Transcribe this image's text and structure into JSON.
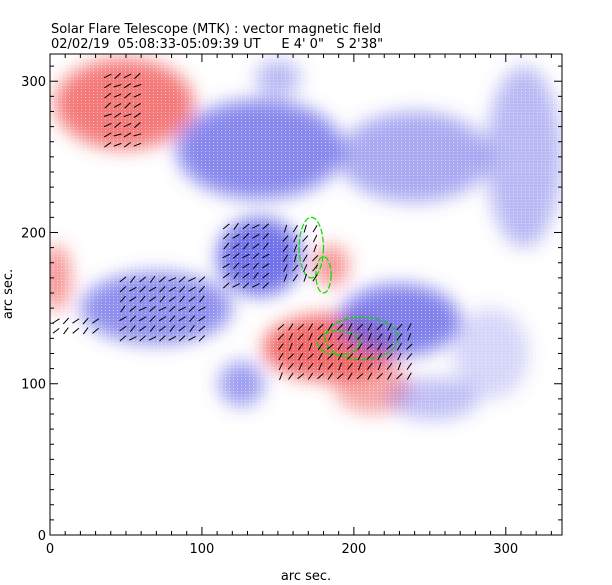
{
  "chart_data": {
    "type": "heatmap",
    "title": "Solar Flare Telescope (MTK) : vector magnetic field",
    "subtitle": "02/02/19  05:08:33-05:09:39 UT     E 4' 0\"   S 2'38\"",
    "xlabel": "arc sec.",
    "ylabel": "arc sec.",
    "xlim": [
      0,
      337
    ],
    "ylim": [
      0,
      318
    ],
    "xticks": [
      0,
      100,
      200,
      300
    ],
    "yticks": [
      0,
      100,
      200,
      300
    ],
    "xtick_labels": [
      "0",
      "100",
      "200",
      "300"
    ],
    "ytick_labels": [
      "0",
      "100",
      "200",
      "300"
    ],
    "colors": {
      "positive": "#f05050",
      "negative": "#5a5ae6",
      "contour": "#00e000",
      "vector": "#000000"
    },
    "field_regions": [
      {
        "polarity": "positive",
        "x": 49,
        "y": 285,
        "rx": 46,
        "ry": 30,
        "strength": 0.9
      },
      {
        "polarity": "positive",
        "x": 4,
        "y": 170,
        "rx": 10,
        "ry": 22,
        "strength": 0.7
      },
      {
        "polarity": "positive",
        "x": 184,
        "y": 124,
        "rx": 44,
        "ry": 22,
        "strength": 1.0
      },
      {
        "polarity": "positive",
        "x": 212,
        "y": 98,
        "rx": 25,
        "ry": 18,
        "strength": 0.6
      },
      {
        "polarity": "positive",
        "x": 185,
        "y": 178,
        "rx": 12,
        "ry": 14,
        "strength": 0.7
      },
      {
        "polarity": "negative",
        "x": 138,
        "y": 255,
        "rx": 55,
        "ry": 33,
        "strength": 0.85
      },
      {
        "polarity": "negative",
        "x": 240,
        "y": 250,
        "rx": 50,
        "ry": 30,
        "strength": 0.6
      },
      {
        "polarity": "negative",
        "x": 138,
        "y": 184,
        "rx": 28,
        "ry": 26,
        "strength": 1.0
      },
      {
        "polarity": "negative",
        "x": 70,
        "y": 150,
        "rx": 50,
        "ry": 24,
        "strength": 0.8
      },
      {
        "polarity": "negative",
        "x": 230,
        "y": 142,
        "rx": 40,
        "ry": 24,
        "strength": 0.9
      },
      {
        "polarity": "negative",
        "x": 126,
        "y": 100,
        "rx": 15,
        "ry": 15,
        "strength": 0.7
      },
      {
        "polarity": "negative",
        "x": 312,
        "y": 250,
        "rx": 25,
        "ry": 60,
        "strength": 0.5
      },
      {
        "polarity": "negative",
        "x": 150,
        "y": 302,
        "rx": 15,
        "ry": 12,
        "strength": 0.5
      },
      {
        "polarity": "negative",
        "x": 252,
        "y": 90,
        "rx": 30,
        "ry": 14,
        "strength": 0.45
      },
      {
        "polarity": "negative",
        "x": 290,
        "y": 120,
        "rx": 25,
        "ry": 30,
        "strength": 0.3
      }
    ],
    "vector_groups": [
      {
        "x": [
          38,
          62
        ],
        "y": [
          258,
          305
        ],
        "angle": 30
      },
      {
        "x": [
          116,
          146
        ],
        "y": [
          165,
          205
        ],
        "angle": 40
      },
      {
        "x": [
          48,
          104
        ],
        "y": [
          130,
          172
        ],
        "angle": 40
      },
      {
        "x": [
          152,
          242
        ],
        "y": [
          105,
          138
        ],
        "angle": 55
      },
      {
        "x": [
          4,
          30
        ],
        "y": [
          135,
          146
        ],
        "angle": 40
      },
      {
        "x": [
          155,
          175
        ],
        "y": [
          170,
          205
        ],
        "angle": 60
      }
    ],
    "contours": [
      {
        "x": 172,
        "y": 190,
        "rx": 8,
        "ry": 20
      },
      {
        "x": 205,
        "y": 130,
        "rx": 24,
        "ry": 14
      },
      {
        "x": 190,
        "y": 127,
        "rx": 14,
        "ry": 8
      },
      {
        "x": 180,
        "y": 172,
        "rx": 5,
        "ry": 12
      }
    ]
  }
}
